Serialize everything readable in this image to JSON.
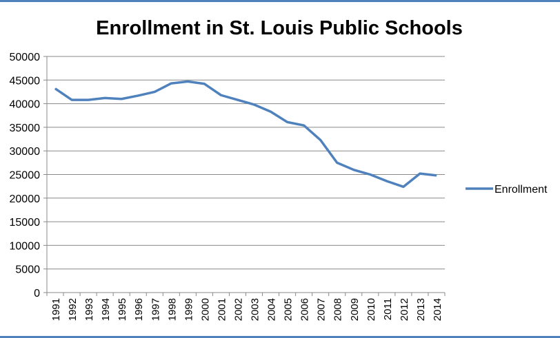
{
  "chart_data": {
    "type": "line",
    "title": "Enrollment in St. Louis Public Schools",
    "xlabel": "",
    "ylabel": "",
    "ylim": [
      0,
      50000
    ],
    "yticks": [
      "0",
      "5000",
      "10000",
      "15000",
      "20000",
      "25000",
      "30000",
      "35000",
      "40000",
      "45000",
      "50000"
    ],
    "grid": true,
    "legend_position": "right",
    "categories": [
      "1991",
      "1992",
      "1993",
      "1994",
      "1995",
      "1996",
      "1997",
      "1998",
      "1999",
      "2000",
      "2001",
      "2002",
      "2003",
      "2004",
      "2005",
      "2006",
      "2007",
      "2008",
      "2009",
      "2010",
      "2011",
      "2012",
      "2013",
      "2014"
    ],
    "series": [
      {
        "name": "Enrollment",
        "color": "#4f81bd",
        "values": [
          43200,
          40800,
          40800,
          41200,
          41000,
          41700,
          42500,
          44300,
          44700,
          44200,
          41800,
          40800,
          39800,
          38300,
          36100,
          35400,
          32300,
          27500,
          26000,
          25000,
          23600,
          22400,
          25200,
          24800
        ]
      }
    ]
  }
}
